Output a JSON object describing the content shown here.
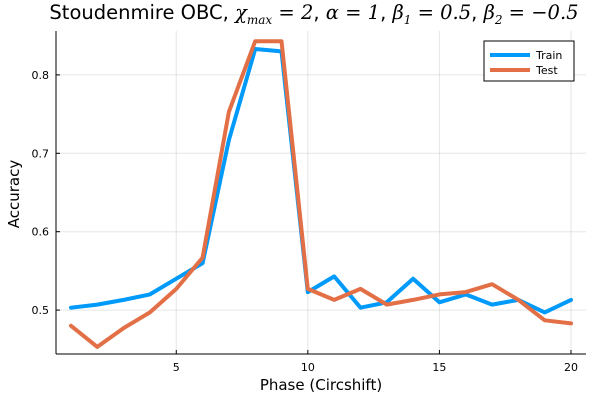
{
  "chart_data": {
    "type": "line",
    "title_parts": [
      {
        "text": "Stoudenmire OBC, ",
        "kind": "plain"
      },
      {
        "text": "χ",
        "kind": "math"
      },
      {
        "text": "max",
        "kind": "sub"
      },
      {
        "text": " = 2",
        "kind": "math"
      },
      {
        "text": ", ",
        "kind": "plain"
      },
      {
        "text": "α = 1",
        "kind": "math"
      },
      {
        "text": ", ",
        "kind": "plain"
      },
      {
        "text": "β",
        "kind": "math"
      },
      {
        "text": "1",
        "kind": "sub"
      },
      {
        "text": " = 0.5",
        "kind": "math"
      },
      {
        "text": ", ",
        "kind": "plain"
      },
      {
        "text": "β",
        "kind": "math"
      },
      {
        "text": "2",
        "kind": "sub"
      },
      {
        "text": " = −0.5",
        "kind": "math"
      }
    ],
    "xlabel": "Phase (Circshift)",
    "ylabel": "Accuracy",
    "xlim": [
      0.43,
      20.57
    ],
    "ylim": [
      0.444,
      0.856
    ],
    "xticks": [
      5,
      10,
      15,
      20
    ],
    "xtick_labels": [
      "5",
      "10",
      "15",
      "20"
    ],
    "yticks": [
      0.5,
      0.6,
      0.7,
      0.8
    ],
    "ytick_labels": [
      "0.5",
      "0.6",
      "0.7",
      "0.8"
    ],
    "grid": true,
    "legend_position": "top-right",
    "x": [
      1,
      2,
      3,
      4,
      5,
      6,
      7,
      8,
      9,
      10,
      11,
      12,
      13,
      14,
      15,
      16,
      17,
      18,
      19,
      20
    ],
    "series": [
      {
        "name": "Train",
        "color": "#009AFA",
        "values": [
          0.503,
          0.507,
          0.513,
          0.52,
          0.54,
          0.56,
          0.717,
          0.833,
          0.83,
          0.523,
          0.543,
          0.503,
          0.51,
          0.54,
          0.51,
          0.52,
          0.507,
          0.513,
          0.497,
          0.513
        ]
      },
      {
        "name": "Test",
        "color": "#E36F47",
        "values": [
          0.48,
          0.453,
          0.477,
          0.497,
          0.527,
          0.567,
          0.753,
          0.843,
          0.843,
          0.527,
          0.513,
          0.527,
          0.507,
          0.513,
          0.52,
          0.523,
          0.533,
          0.513,
          0.487,
          0.483
        ]
      }
    ]
  }
}
